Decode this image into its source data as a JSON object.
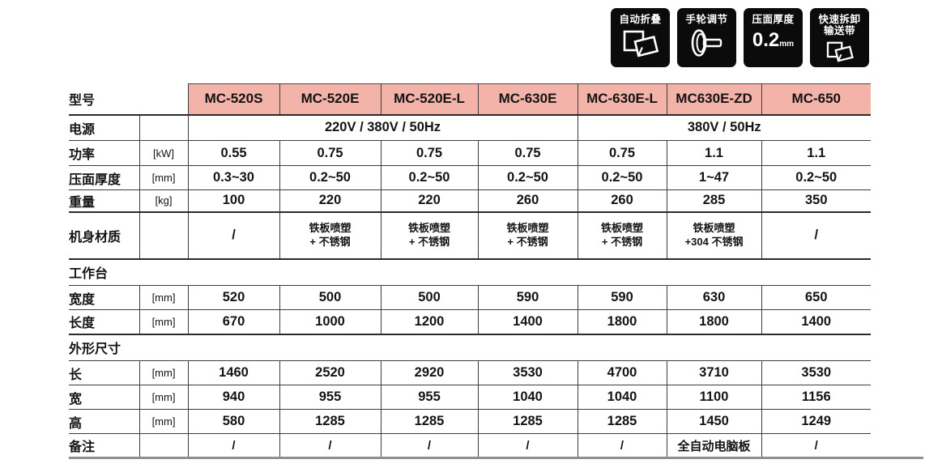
{
  "colors": {
    "header_bg": "#f4b3a9",
    "badge_bg": "#0b0b0b",
    "line_dark": "#3d3d3d",
    "line_gray": "#8f8f8f"
  },
  "badges": [
    {
      "label": "自动折叠",
      "icon": "fold-sheet-icon"
    },
    {
      "label": "手轮调节",
      "icon": "handwheel-icon"
    },
    {
      "label": "压面厚度",
      "value": "0.2",
      "unit": "mm"
    },
    {
      "label_line1": "快速拆卸",
      "label_line2": "输送带",
      "icon": "fold-belt-icon"
    }
  ],
  "table": {
    "model_header": {
      "label": "型号",
      "models": [
        "MC-520S",
        "MC-520E",
        "MC-520E-L",
        "MC-630E",
        "MC-630E-L",
        "MC630E-ZD",
        "MC-650"
      ]
    },
    "power": {
      "label": "电源",
      "span1": "220V / 380V / 50Hz",
      "span2": "380V / 50Hz"
    },
    "rows_top": [
      {
        "label": "功率",
        "unit": "[kW]",
        "values": [
          "0.55",
          "0.75",
          "0.75",
          "0.75",
          "0.75",
          "1.1",
          "1.1"
        ]
      },
      {
        "label": "压面厚度",
        "unit": "[mm]",
        "values": [
          "0.3~30",
          "0.2~50",
          "0.2~50",
          "0.2~50",
          "0.2~50",
          "1~47",
          "0.2~50"
        ]
      },
      {
        "label": "重量",
        "unit": "[kg]",
        "values": [
          "100",
          "220",
          "220",
          "260",
          "260",
          "285",
          "350"
        ]
      }
    ],
    "material": {
      "label": "机身材质",
      "values": [
        "/",
        "铁板喷塑\n+ 不锈钢",
        "铁板喷塑\n+ 不锈钢",
        "铁板喷塑\n+ 不锈钢",
        "铁板喷塑\n+ 不锈钢",
        "铁板喷塑\n+304 不锈钢",
        "/"
      ]
    },
    "section_worktable": "工作台",
    "rows_worktable": [
      {
        "label": "宽度",
        "unit": "[mm]",
        "values": [
          "520",
          "500",
          "500",
          "590",
          "590",
          "630",
          "650"
        ]
      },
      {
        "label": "长度",
        "unit": "[mm]",
        "values": [
          "670",
          "1000",
          "1200",
          "1400",
          "1800",
          "1800",
          "1400"
        ]
      }
    ],
    "section_dimensions": "外形尺寸",
    "rows_dimensions": [
      {
        "label": "长",
        "unit": "[mm]",
        "values": [
          "1460",
          "2520",
          "2920",
          "3530",
          "4700",
          "3710",
          "3530"
        ]
      },
      {
        "label": "宽",
        "unit": "[mm]",
        "values": [
          "940",
          "955",
          "955",
          "1040",
          "1040",
          "1100",
          "1156"
        ]
      },
      {
        "label": "高",
        "unit": "[mm]",
        "values": [
          "580",
          "1285",
          "1285",
          "1285",
          "1285",
          "1450",
          "1249"
        ]
      }
    ],
    "remarks": {
      "label": "备注",
      "values": [
        "/",
        "/",
        "/",
        "/",
        "/",
        "全自动电脑板",
        "/"
      ]
    }
  }
}
